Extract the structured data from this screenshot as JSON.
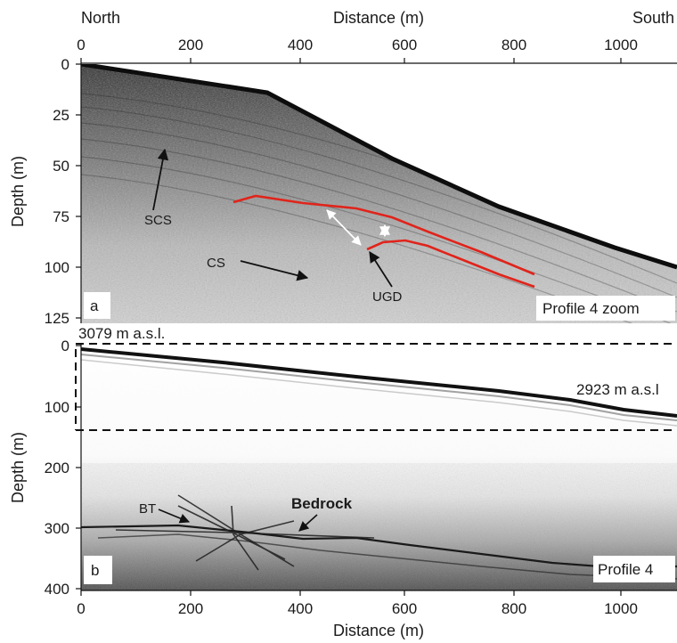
{
  "panel_a": {
    "top_axis": {
      "title": "Distance (m)",
      "left_label": "North",
      "right_label": "South",
      "ticks": [
        "0",
        "200",
        "400",
        "600",
        "800",
        "1000"
      ]
    },
    "y_axis": {
      "title": "Depth (m)",
      "ticks": [
        "0",
        "25",
        "50",
        "75",
        "100",
        "125"
      ]
    },
    "letter": "a",
    "caption": "Profile 4 zoom",
    "annotations": {
      "scs": "SCS",
      "cs": "CS",
      "ugd": "UGD"
    },
    "colors": {
      "reflector": "#e0241b"
    }
  },
  "panel_b": {
    "x_axis": {
      "title": "Distance (m)",
      "ticks": [
        "0",
        "200",
        "400",
        "600",
        "800",
        "1000"
      ]
    },
    "y_axis": {
      "title": "Depth (m)",
      "ticks": [
        "0",
        "100",
        "200",
        "300",
        "400"
      ]
    },
    "letter": "b",
    "caption": "Profile 4",
    "annotations": {
      "elev_left": "3079 m a.s.l.",
      "elev_right": "2923 m a.s.l",
      "bt": "BT",
      "bedrock": "Bedrock"
    }
  }
}
